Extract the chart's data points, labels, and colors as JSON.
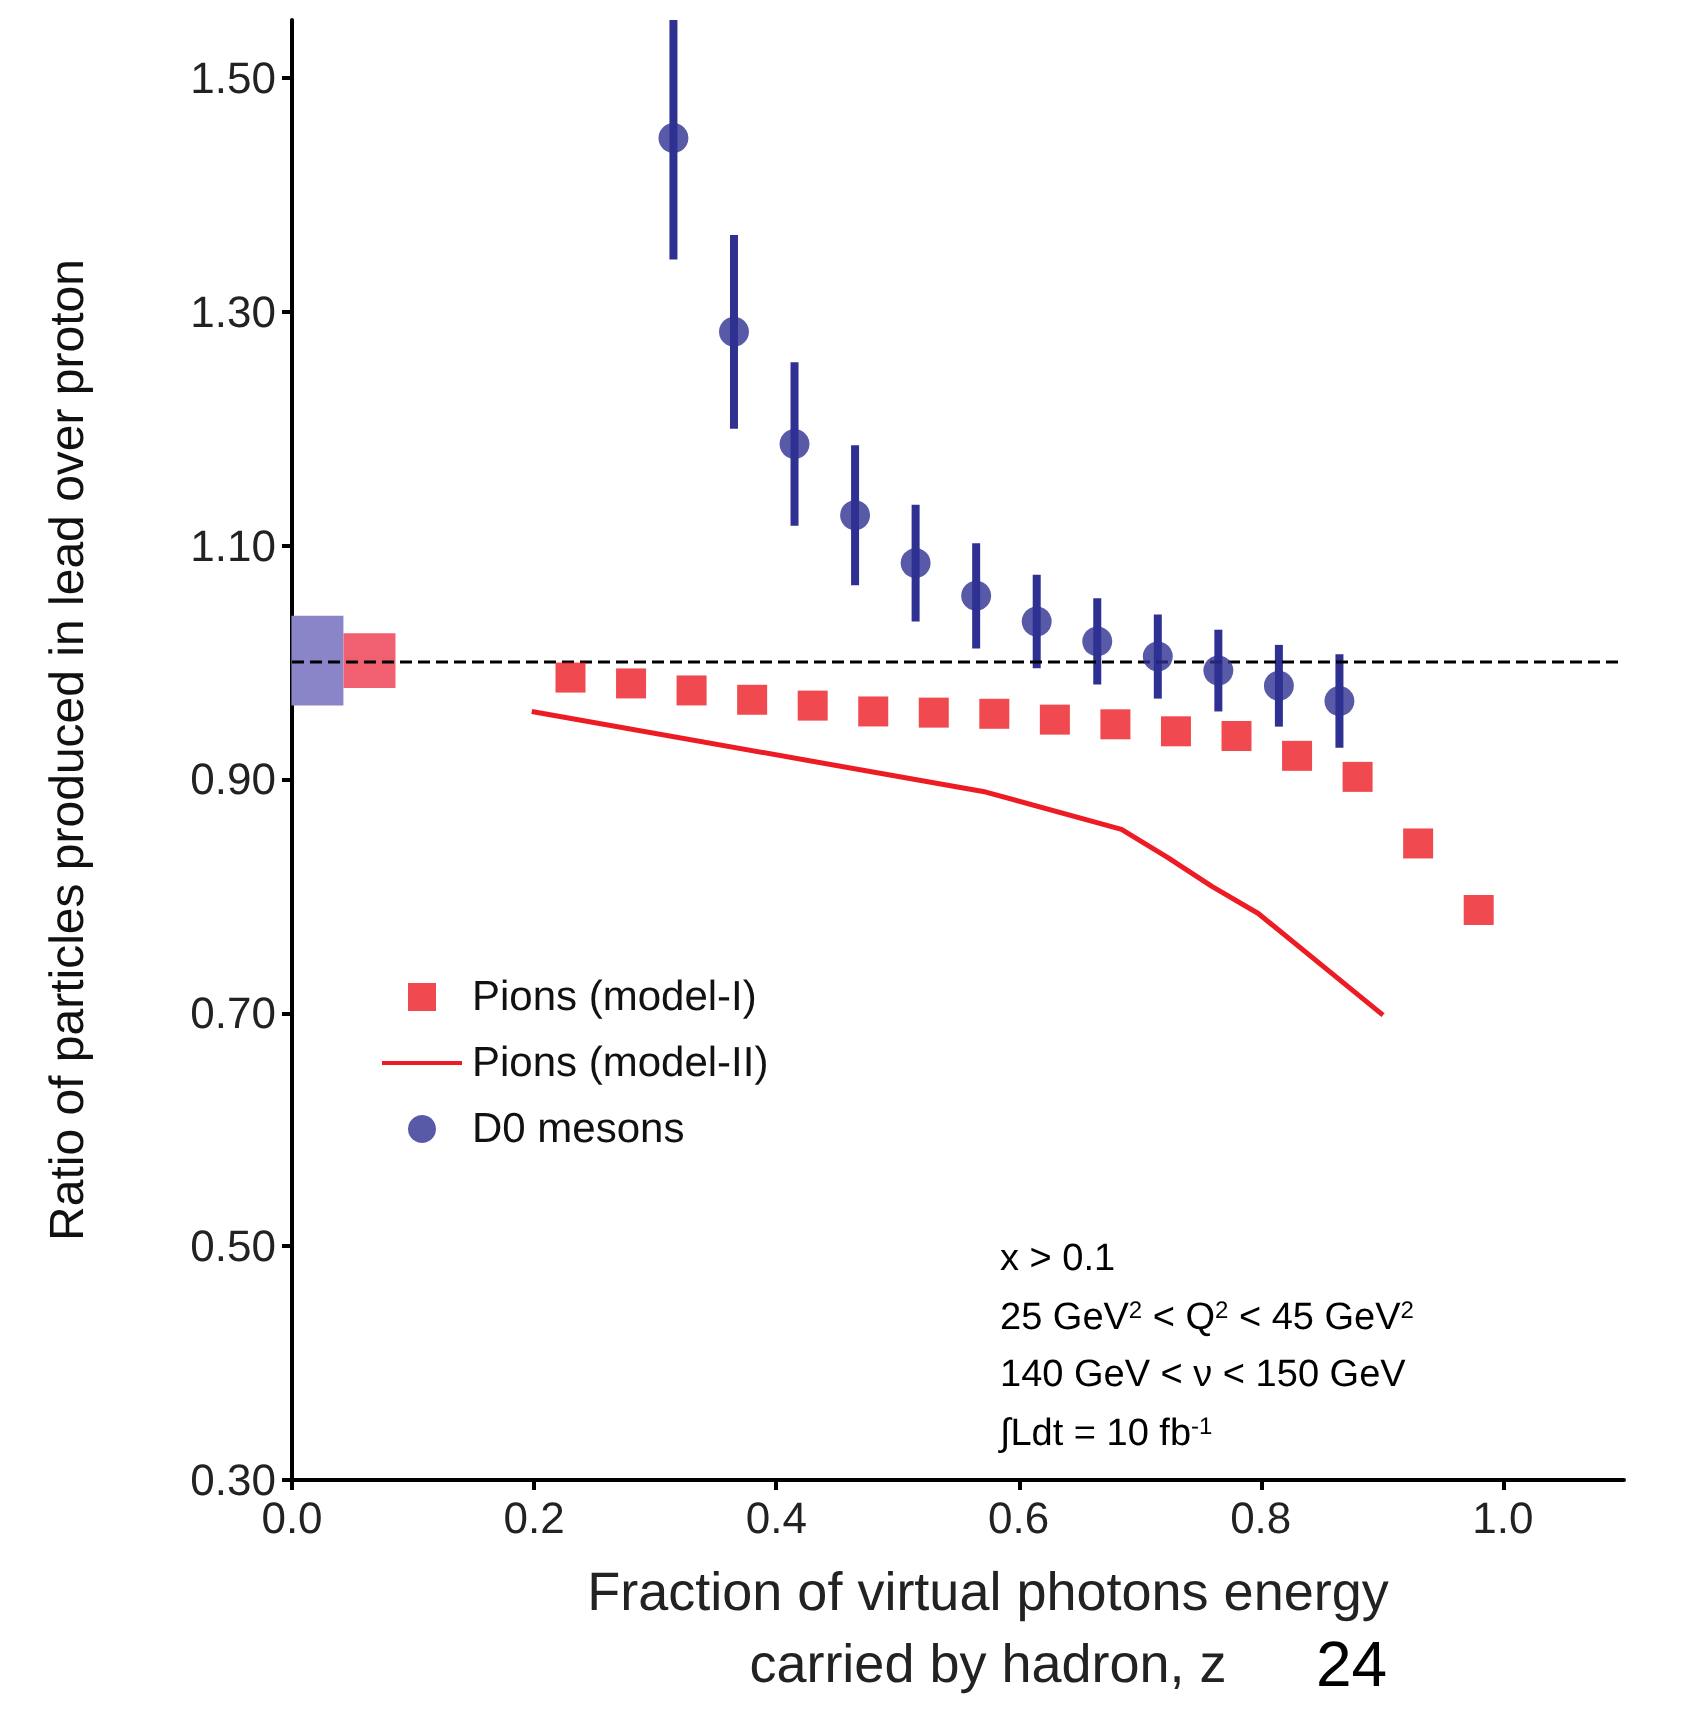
{
  "chart_data": {
    "type": "scatter",
    "xlabel": "Fraction of virtual photons energy\ncarried by hadron, z",
    "ylabel": "Ratio of particles produced in lead over proton",
    "xlim": [
      0,
      1.1
    ],
    "ylim": [
      0.3,
      1.55
    ],
    "xticks": [
      {
        "value": 0,
        "label": "0.0"
      },
      {
        "value": 0.2,
        "label": "0.2"
      },
      {
        "value": 0.4,
        "label": "0.4"
      },
      {
        "value": 0.6,
        "label": "0.6"
      },
      {
        "value": 0.8,
        "label": "0.8"
      },
      {
        "value": 1,
        "label": "1.0"
      }
    ],
    "yticks": [
      {
        "value": 0.3,
        "label": "0.30"
      },
      {
        "value": 0.5,
        "label": "0.50"
      },
      {
        "value": 0.7,
        "label": "0.70"
      },
      {
        "value": 0.9,
        "label": "0.90"
      },
      {
        "value": 1.1,
        "label": "1.10"
      },
      {
        "value": 1.3,
        "label": "1.30"
      },
      {
        "value": 1.5,
        "label": "1.50"
      }
    ],
    "grid": false,
    "legend": "left",
    "series": [
      {
        "name": "Pions (model-I)",
        "marker": "square",
        "color": "#ed1c24",
        "x": [
          0.23,
          0.28,
          0.33,
          0.38,
          0.43,
          0.48,
          0.53,
          0.58,
          0.63,
          0.68,
          0.73,
          0.78,
          0.83,
          0.88,
          0.93,
          0.98
        ],
        "values": [
          0.987,
          0.982,
          0.976,
          0.968,
          0.963,
          0.958,
          0.957,
          0.956,
          0.951,
          0.947,
          0.941,
          0.937,
          0.92,
          0.902,
          0.845,
          0.788
        ]
      },
      {
        "name": "Pions (model-II)",
        "type": "line",
        "marker": "none",
        "color": "#ed1c24",
        "x": [
          0.198,
          0.573,
          0.685,
          0.723,
          0.76,
          0.798,
          0.901
        ],
        "values": [
          0.958,
          0.889,
          0.857,
          0.833,
          0.808,
          0.785,
          0.698
        ]
      },
      {
        "name": "D0 mesons",
        "marker": "circle",
        "color": "#2e3192",
        "x": [
          0.315,
          0.365,
          0.415,
          0.465,
          0.515,
          0.565,
          0.615,
          0.665,
          0.715,
          0.765,
          0.815,
          0.865
        ],
        "values": [
          1.449,
          1.283,
          1.187,
          1.126,
          1.085,
          1.057,
          1.035,
          1.018,
          1.005,
          0.993,
          0.98,
          0.967
        ],
        "errors": [
          [
            1.345,
            1.55
          ],
          0.083,
          0.07,
          0.06,
          0.05,
          0.045,
          0.04,
          0.037,
          0.036,
          0.035,
          0.035,
          0.04
        ]
      },
      {
        "type": "bar",
        "color": "#8a85c8",
        "x": [
          0.021
        ],
        "base": [
          0.963
        ],
        "values": [
          0.077
        ]
      },
      {
        "type": "bar",
        "color": "#f06070",
        "x": [
          0.064
        ],
        "base": [
          0.978
        ],
        "values": [
          0.047
        ]
      }
    ],
    "ref_lines": [
      {
        "axis": "y",
        "value": 1.0,
        "color": "#000000",
        "line_style": "dashed"
      }
    ],
    "annotations": [
      "x > 0.1",
      "25 GeV$^{2}$ < Q$^{2}$ < 45 GeV$^{2}$",
      "140 GeV < ν < 150 GeV",
      "∫Ldt = 10 fb$^{-1}$",
      "24"
    ]
  }
}
